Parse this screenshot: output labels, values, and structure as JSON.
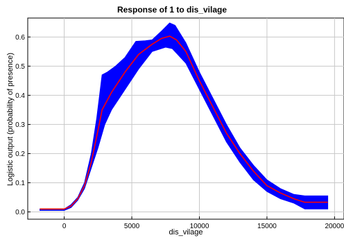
{
  "chart_data": {
    "type": "line",
    "title": "Response of 1 to dis_vilage",
    "xlabel": "dis_vilage",
    "ylabel": "Logistic output (probability of presence)",
    "xlim": [
      -2700,
      20700
    ],
    "ylim": [
      -0.025,
      0.665
    ],
    "xticks": [
      0,
      5000,
      10000,
      15000,
      20000
    ],
    "xtick_labels": [
      "0",
      "5000",
      "10000",
      "15000",
      "20000"
    ],
    "yticks": [
      0.0,
      0.1,
      0.2,
      0.3,
      0.4,
      0.5,
      0.6
    ],
    "ytick_labels": [
      "0.0",
      "0.1",
      "0.2",
      "0.3",
      "0.4",
      "0.5",
      "0.6"
    ],
    "grid": true,
    "legend": "none",
    "series": [
      {
        "kind": "mean",
        "color": "#ff0000",
        "x": [
          -1800,
          -1000,
          0,
          500,
          1000,
          1500,
          2000,
          2500,
          2800,
          3500,
          4500,
          5500,
          6500,
          7200,
          7800,
          8300,
          9000,
          10000,
          11000,
          12000,
          13000,
          14000,
          15000,
          16000,
          17000,
          17800,
          18500,
          19500
        ],
        "y": [
          0.01,
          0.01,
          0.01,
          0.02,
          0.045,
          0.09,
          0.17,
          0.28,
          0.35,
          0.41,
          0.48,
          0.54,
          0.575,
          0.595,
          0.603,
          0.59,
          0.55,
          0.45,
          0.36,
          0.27,
          0.2,
          0.14,
          0.09,
          0.065,
          0.045,
          0.033,
          0.033,
          0.033
        ]
      },
      {
        "kind": "upper",
        "color": "#0000ff",
        "x": [
          -1800,
          -1000,
          0,
          500,
          1000,
          1500,
          2000,
          2400,
          2800,
          3200,
          3800,
          4500,
          5300,
          6000,
          6500,
          7200,
          7800,
          8200,
          9000,
          10000,
          11000,
          12000,
          13000,
          14000,
          15000,
          16000,
          17000,
          17800,
          18500,
          19500
        ],
        "y": [
          0.01,
          0.01,
          0.01,
          0.025,
          0.05,
          0.1,
          0.2,
          0.32,
          0.47,
          0.48,
          0.5,
          0.53,
          0.585,
          0.587,
          0.59,
          0.62,
          0.648,
          0.64,
          0.58,
          0.48,
          0.39,
          0.3,
          0.22,
          0.16,
          0.11,
          0.08,
          0.06,
          0.055,
          0.055,
          0.055
        ]
      },
      {
        "kind": "lower",
        "color": "#0000ff",
        "x": [
          -1800,
          -1000,
          0,
          500,
          1000,
          1500,
          2000,
          2500,
          3000,
          3500,
          4500,
          5500,
          6500,
          7500,
          8000,
          9000,
          10000,
          11000,
          12000,
          13000,
          14000,
          15000,
          16000,
          17000,
          17800,
          18500,
          19500
        ],
        "y": [
          0.005,
          0.005,
          0.005,
          0.015,
          0.04,
          0.08,
          0.15,
          0.22,
          0.3,
          0.35,
          0.42,
          0.49,
          0.55,
          0.565,
          0.56,
          0.51,
          0.42,
          0.33,
          0.24,
          0.17,
          0.11,
          0.07,
          0.045,
          0.03,
          0.01,
          0.01,
          0.01
        ]
      }
    ]
  }
}
